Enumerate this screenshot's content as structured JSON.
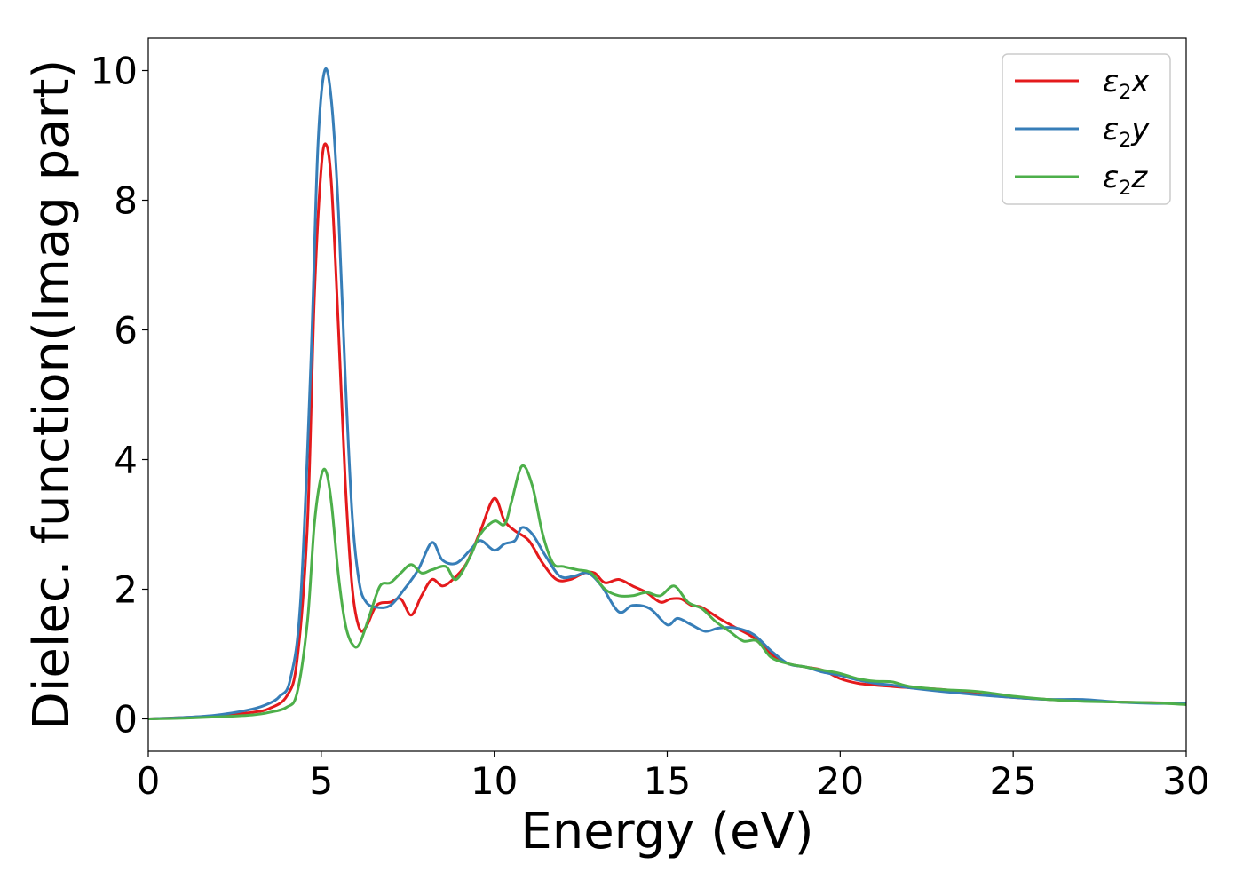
{
  "chart_data": {
    "type": "line",
    "title": "",
    "xlabel": "Energy (eV)",
    "ylabel": "Dielec. function(Imag part)",
    "xlim": [
      0,
      30
    ],
    "ylim": [
      -0.5,
      10.5
    ],
    "xticks": [
      0,
      5,
      10,
      15,
      20,
      25,
      30
    ],
    "yticks": [
      0,
      2,
      4,
      6,
      8,
      10
    ],
    "grid": false,
    "legend_position": "top-right",
    "series": [
      {
        "name": "ε2x",
        "legend_base": "ε",
        "legend_sub": "2",
        "legend_var": "x",
        "color": "#e41a1c",
        "x": [
          0,
          1,
          2,
          3,
          3.5,
          4,
          4.3,
          4.6,
          4.8,
          5.0,
          5.15,
          5.3,
          5.5,
          5.7,
          5.9,
          6.1,
          6.3,
          6.6,
          7.0,
          7.3,
          7.6,
          7.9,
          8.2,
          8.5,
          8.8,
          9.2,
          9.6,
          10.0,
          10.3,
          10.6,
          11.0,
          11.4,
          11.8,
          12.2,
          12.6,
          12.9,
          13.2,
          13.6,
          14.0,
          14.4,
          14.8,
          15.1,
          15.4,
          15.7,
          16.0,
          16.5,
          17.0,
          17.5,
          18.0,
          18.5,
          19.0,
          19.5,
          20.0,
          20.5,
          21.0,
          21.5,
          22.0,
          23.0,
          24.0,
          25.0,
          26.0,
          27.0,
          28.0,
          29.0,
          30.0
        ],
        "values": [
          0.0,
          0.02,
          0.05,
          0.1,
          0.16,
          0.35,
          0.9,
          3.0,
          6.5,
          8.5,
          8.85,
          8.2,
          6.0,
          3.6,
          2.0,
          1.4,
          1.42,
          1.75,
          1.8,
          1.85,
          1.6,
          1.9,
          2.15,
          2.05,
          2.15,
          2.4,
          2.9,
          3.4,
          3.05,
          2.9,
          2.75,
          2.4,
          2.15,
          2.15,
          2.25,
          2.25,
          2.1,
          2.15,
          2.05,
          1.95,
          1.8,
          1.85,
          1.85,
          1.75,
          1.72,
          1.55,
          1.4,
          1.25,
          1.0,
          0.85,
          0.8,
          0.75,
          0.62,
          0.55,
          0.52,
          0.5,
          0.48,
          0.45,
          0.38,
          0.33,
          0.3,
          0.28,
          0.26,
          0.25,
          0.24
        ]
      },
      {
        "name": "ε2y",
        "legend_base": "ε",
        "legend_sub": "2",
        "legend_var": "y",
        "color": "#377eb8",
        "x": [
          0,
          1,
          2,
          3,
          3.5,
          3.8,
          4.1,
          4.4,
          4.7,
          4.9,
          5.1,
          5.3,
          5.5,
          5.7,
          5.9,
          6.1,
          6.3,
          6.6,
          7.0,
          7.4,
          7.8,
          8.2,
          8.5,
          8.9,
          9.3,
          9.6,
          10.0,
          10.3,
          10.6,
          10.8,
          11.1,
          11.5,
          11.9,
          12.3,
          12.7,
          13.1,
          13.6,
          14.0,
          14.5,
          15.0,
          15.3,
          15.7,
          16.1,
          16.5,
          17.0,
          17.5,
          18.0,
          18.5,
          19.0,
          19.5,
          20.0,
          20.5,
          21.0,
          21.5,
          22.0,
          23.0,
          24.0,
          25.0,
          26.0,
          27.0,
          28.0,
          29.0,
          30.0
        ],
        "values": [
          0.0,
          0.02,
          0.06,
          0.15,
          0.24,
          0.35,
          0.6,
          1.8,
          5.5,
          8.8,
          10.0,
          9.5,
          7.8,
          5.2,
          3.1,
          2.1,
          1.8,
          1.72,
          1.75,
          2.0,
          2.3,
          2.72,
          2.45,
          2.4,
          2.6,
          2.75,
          2.6,
          2.7,
          2.75,
          2.95,
          2.85,
          2.5,
          2.2,
          2.2,
          2.25,
          2.05,
          1.65,
          1.75,
          1.7,
          1.45,
          1.55,
          1.45,
          1.35,
          1.4,
          1.4,
          1.3,
          1.05,
          0.85,
          0.8,
          0.72,
          0.67,
          0.6,
          0.55,
          0.52,
          0.48,
          0.42,
          0.37,
          0.33,
          0.3,
          0.3,
          0.26,
          0.24,
          0.24
        ]
      },
      {
        "name": "ε2z",
        "legend_base": "ε",
        "legend_sub": "2",
        "legend_var": "z",
        "color": "#4daf4a",
        "x": [
          0,
          1,
          2,
          3,
          3.5,
          4.0,
          4.3,
          4.6,
          4.8,
          5.0,
          5.15,
          5.3,
          5.5,
          5.7,
          5.9,
          6.1,
          6.4,
          6.7,
          7.0,
          7.3,
          7.6,
          7.9,
          8.2,
          8.6,
          8.9,
          9.3,
          9.6,
          10.0,
          10.3,
          10.5,
          10.8,
          11.1,
          11.4,
          11.7,
          12.0,
          12.4,
          12.8,
          13.2,
          13.6,
          14.0,
          14.4,
          14.8,
          15.2,
          15.6,
          16.0,
          16.4,
          16.8,
          17.2,
          17.6,
          18.0,
          18.5,
          19.0,
          19.5,
          20.0,
          20.5,
          21.0,
          21.5,
          22.0,
          23.0,
          24.0,
          25.0,
          26.0,
          27.0,
          28.0,
          29.0,
          30.0
        ],
        "values": [
          0.0,
          0.01,
          0.03,
          0.06,
          0.1,
          0.18,
          0.4,
          1.5,
          3.0,
          3.75,
          3.8,
          3.3,
          2.2,
          1.45,
          1.15,
          1.15,
          1.6,
          2.05,
          2.1,
          2.25,
          2.38,
          2.25,
          2.3,
          2.35,
          2.15,
          2.5,
          2.85,
          3.05,
          3.0,
          3.35,
          3.9,
          3.6,
          2.85,
          2.4,
          2.35,
          2.3,
          2.25,
          2.0,
          1.9,
          1.9,
          1.95,
          1.9,
          2.05,
          1.8,
          1.7,
          1.5,
          1.35,
          1.2,
          1.2,
          0.95,
          0.85,
          0.8,
          0.75,
          0.7,
          0.62,
          0.58,
          0.57,
          0.5,
          0.45,
          0.42,
          0.35,
          0.3,
          0.27,
          0.26,
          0.25,
          0.22
        ]
      }
    ]
  }
}
